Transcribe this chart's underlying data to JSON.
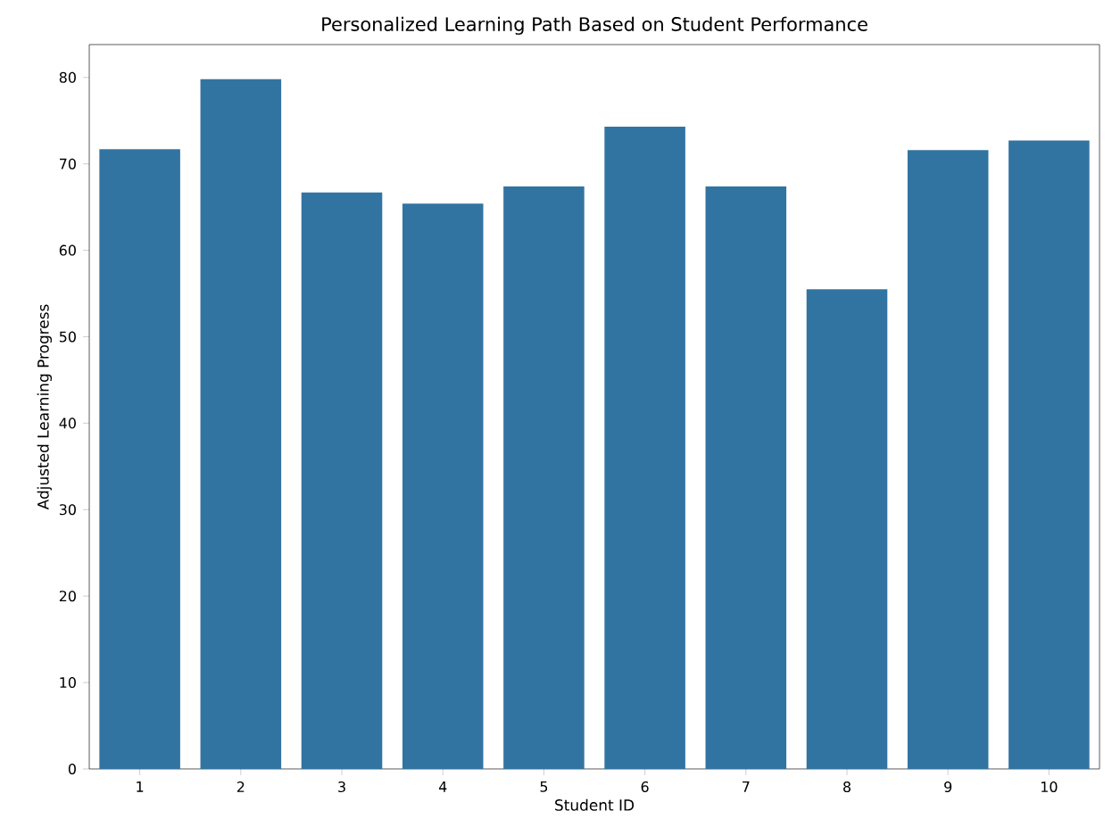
{
  "chart_data": {
    "type": "bar",
    "title": "Personalized Learning Path Based on Student Performance",
    "xlabel": "Student ID",
    "ylabel": "Adjusted Learning Progress",
    "categories": [
      "1",
      "2",
      "3",
      "4",
      "5",
      "6",
      "7",
      "8",
      "9",
      "10"
    ],
    "values": [
      71.7,
      79.8,
      66.7,
      65.4,
      67.4,
      74.3,
      67.4,
      55.5,
      71.6,
      72.7
    ],
    "color": "#3274a1",
    "ylim": [
      0,
      83.8
    ],
    "yticks": [
      0,
      10,
      20,
      30,
      40,
      50,
      60,
      70,
      80
    ]
  }
}
